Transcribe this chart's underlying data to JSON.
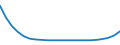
{
  "x": [
    0,
    1,
    2,
    3,
    4,
    5,
    6,
    7,
    8,
    9,
    10,
    11,
    12,
    13,
    14,
    15,
    16,
    17,
    18,
    19,
    20
  ],
  "y": [
    200,
    170,
    148,
    133,
    122,
    116,
    114,
    113,
    112,
    112,
    112,
    112,
    112,
    112,
    112,
    112,
    113,
    115,
    118,
    124,
    135
  ],
  "line_color": "#1b7fc4",
  "line_width": 1.3,
  "background_color": "#ffffff",
  "plot_bg_color": "#f2f2f2",
  "ylim": [
    100,
    215
  ],
  "xlim": [
    0,
    20
  ]
}
